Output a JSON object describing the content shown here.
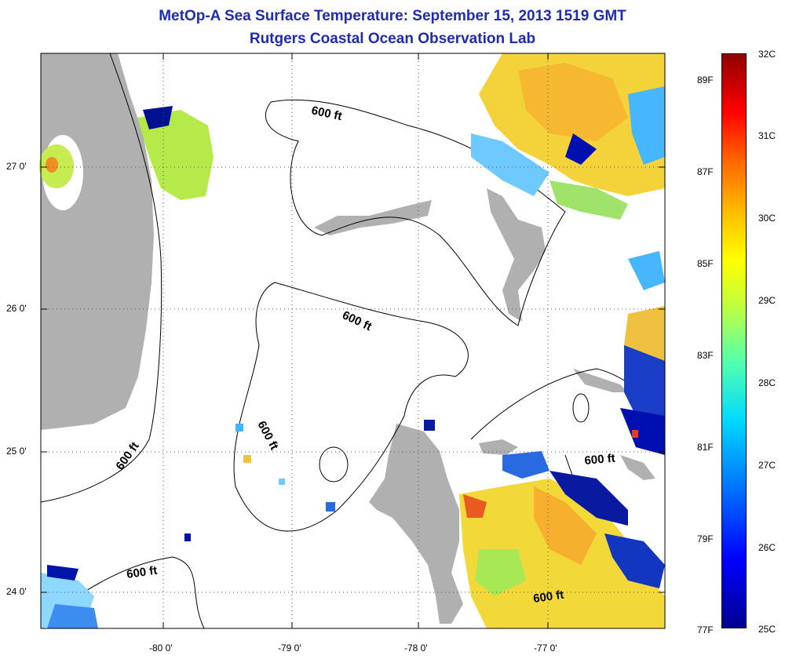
{
  "title_line1": "MetOp-A Sea Surface Temperature:  September 15, 2013 1519 GMT",
  "title_line2": "Rutgers Coastal Ocean Observation Lab",
  "y_axis": {
    "labels": [
      "27 0'",
      "26 0'",
      "25 0'",
      "24 0'"
    ]
  },
  "x_axis": {
    "labels": [
      "-80 0'",
      "-79 0'",
      "-78 0'",
      "-77 0'"
    ]
  },
  "contour_label": "600 ft",
  "colorbar": {
    "celsius": [
      "32C",
      "31C",
      "30C",
      "29C",
      "28C",
      "27C",
      "26C",
      "25C"
    ],
    "fahrenheit": [
      "89F",
      "87F",
      "85F",
      "83F",
      "81F",
      "79F",
      "77F"
    ]
  },
  "colors": {
    "title": "#1f2bb0",
    "land": "#b0b0b0",
    "cold": "#00008f",
    "warm": "#900000"
  }
}
